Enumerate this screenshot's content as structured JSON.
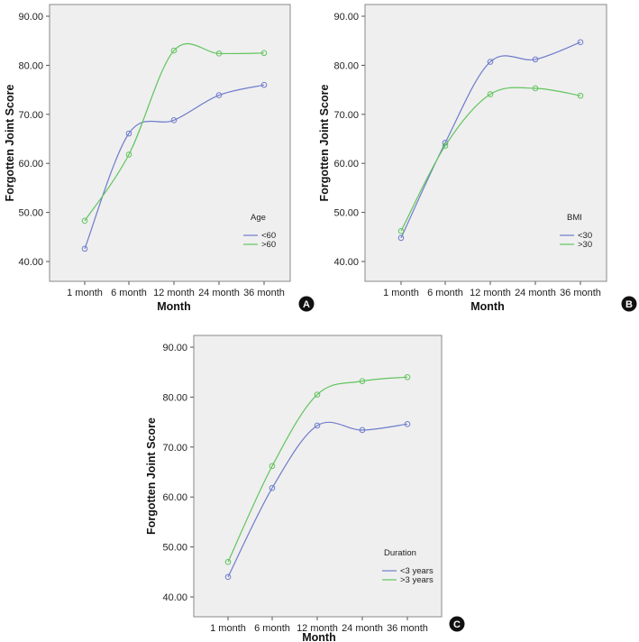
{
  "chart_data": [
    {
      "panel": "A",
      "type": "line",
      "title": "",
      "xlabel": "Month",
      "ylabel": "Forgotten Joint Score",
      "categories": [
        "1 month",
        "6 month",
        "12 month",
        "24 month",
        "36 month"
      ],
      "ylim": [
        40,
        90
      ],
      "yticks": [
        "40.00",
        "50.00",
        "60.00",
        "70.00",
        "80.00",
        "90.00"
      ],
      "legend_title": "Age",
      "legend_position": "bottom-right",
      "series": [
        {
          "name": "<60",
          "color": "#6f7ccc",
          "values": [
            42.6,
            66.1,
            68.8,
            73.9,
            76.0
          ]
        },
        {
          "name": ">60",
          "color": "#61c45e",
          "values": [
            48.3,
            61.8,
            83.0,
            82.4,
            82.5
          ]
        }
      ]
    },
    {
      "panel": "B",
      "type": "line",
      "title": "",
      "xlabel": "Month",
      "ylabel": "Forgotten Joint Score",
      "categories": [
        "1 month",
        "6 month",
        "12 month",
        "24 month",
        "36 month"
      ],
      "ylim": [
        40,
        90
      ],
      "yticks": [
        "40.00",
        "50.00",
        "60.00",
        "70.00",
        "80.00",
        "90.00"
      ],
      "legend_title": "BMI",
      "legend_position": "bottom-right",
      "series": [
        {
          "name": "<30",
          "color": "#6f7ccc",
          "values": [
            44.8,
            64.2,
            80.7,
            81.2,
            84.7
          ]
        },
        {
          "name": ">30",
          "color": "#61c45e",
          "values": [
            46.2,
            63.6,
            74.1,
            75.3,
            73.8
          ]
        }
      ]
    },
    {
      "panel": "C",
      "type": "line",
      "title": "",
      "xlabel": "Month",
      "ylabel": "Forgotten Joint Score",
      "categories": [
        "1 month",
        "6 month",
        "12 month",
        "24 month",
        "36 month"
      ],
      "ylim": [
        40,
        90
      ],
      "yticks": [
        "40.00",
        "50.00",
        "60.00",
        "70.00",
        "80.00",
        "90.00"
      ],
      "legend_title": "Duration",
      "legend_position": "bottom-right",
      "series": [
        {
          "name": "<3 years",
          "color": "#6f7ccc",
          "values": [
            44.0,
            61.8,
            74.3,
            73.4,
            74.6
          ]
        },
        {
          "name": ">3 years",
          "color": "#61c45e",
          "values": [
            47.0,
            66.2,
            80.5,
            83.2,
            84.0
          ]
        }
      ]
    }
  ]
}
